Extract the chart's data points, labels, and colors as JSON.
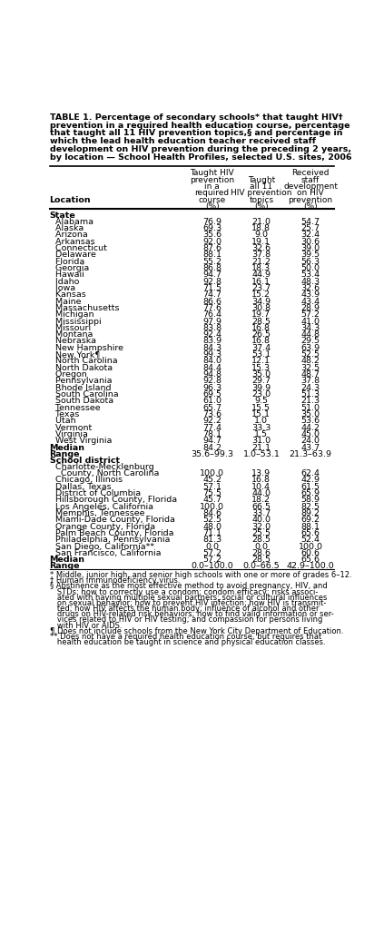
{
  "title_line1": "TABLE 1. Percentage of secondary schools* that taught HIV†",
  "title_line2": "prevention in a required health education course, percentage",
  "title_line3": "that taught all 11 HIV prevention topics,§ and percentage in",
  "title_line4": "which the lead health education teacher received staff",
  "title_line5": "development on HIV prevention during the preceding 2 years,",
  "title_line6": "by location — School Health Profiles, selected U.S. sites, 2006",
  "state_rows": [
    [
      "Alabama",
      "76.9",
      "21.0",
      "54.7"
    ],
    [
      "Alaska",
      "69.3",
      "18.8",
      "25.7"
    ],
    [
      "Arizona",
      "35.6",
      "9.0",
      "32.4"
    ],
    [
      "Arkansas",
      "92.0",
      "19.1",
      "30.6"
    ],
    [
      "Connecticut",
      "87.6",
      "32.6",
      "39.0"
    ],
    [
      "Delaware",
      "88.1",
      "37.8",
      "39.5"
    ],
    [
      "Florida",
      "55.2",
      "21.2",
      "56.3"
    ],
    [
      "Georgia",
      "86.8",
      "18.3",
      "50.0"
    ],
    [
      "Hawaii",
      "94.7",
      "44.9",
      "53.4"
    ],
    [
      "Idaho",
      "92.8",
      "16.1",
      "48.3"
    ],
    [
      "Iowa",
      "71.5",
      "23.7",
      "32.6"
    ],
    [
      "Kansas",
      "74.7",
      "15.2",
      "43.9"
    ],
    [
      "Maine",
      "86.6",
      "34.9",
      "43.4"
    ],
    [
      "Massachusetts",
      "77.6",
      "30.8",
      "28.9"
    ],
    [
      "Michigan",
      "76.4",
      "19.7",
      "57.2"
    ],
    [
      "Mississippi",
      "97.9",
      "28.5",
      "41.0"
    ],
    [
      "Missouri",
      "83.8",
      "16.8",
      "34.3"
    ],
    [
      "Montana",
      "92.4",
      "26.5",
      "44.8"
    ],
    [
      "Nebraska",
      "83.9",
      "16.8",
      "29.5"
    ],
    [
      "New Hampshire",
      "84.3",
      "37.4",
      "63.9"
    ],
    [
      "New York¶",
      "99.3",
      "53.1",
      "52.5"
    ],
    [
      "North Carolina",
      "84.0",
      "12.1",
      "48.2"
    ],
    [
      "North Dakota",
      "84.4",
      "15.3",
      "32.5"
    ],
    [
      "Oregon",
      "94.8",
      "35.0",
      "48.7"
    ],
    [
      "Pennsylvania",
      "92.8",
      "29.7",
      "37.8"
    ],
    [
      "Rhode Island",
      "96.3",
      "39.9",
      "24.3"
    ],
    [
      "South Carolina",
      "69.5",
      "23.0",
      "51.3"
    ],
    [
      "South Dakota",
      "61.0",
      "9.5",
      "21.3"
    ],
    [
      "Tennessee",
      "65.7",
      "15.5",
      "51.0"
    ],
    [
      "Texas",
      "73.6",
      "15.1",
      "35.0"
    ],
    [
      "Utah",
      "92.2",
      "1.0",
      "53.6"
    ],
    [
      "Vermont",
      "77.4",
      "33.3",
      "44.2"
    ],
    [
      "Virginia",
      "78.1",
      "1.5",
      "45.0"
    ],
    [
      "West Virginia",
      "94.7",
      "31.0",
      "24.0"
    ]
  ],
  "state_median": [
    "84.2",
    "21.1",
    "43.7"
  ],
  "state_range": [
    "35.6–99.3",
    "1.0–53.1",
    "21.3–63.9"
  ],
  "district_rows": [
    [
      "Charlotte-Mecklenburg",
      "County, North Carolina",
      "100.0",
      "13.9",
      "62.4"
    ],
    [
      "Chicago, Illinois",
      "",
      "45.2",
      "16.8",
      "42.9"
    ],
    [
      "Dallas, Texas",
      "",
      "57.1",
      "10.4",
      "61.5"
    ],
    [
      "District of Columbia",
      "",
      "75.5",
      "44.0",
      "65.9"
    ],
    [
      "Hillsborough County, Florida",
      "",
      "45.7",
      "18.2",
      "58.9"
    ],
    [
      "Los Angeles, California",
      "",
      "100.0",
      "66.5",
      "82.5"
    ],
    [
      "Memphis, Tennessee",
      "",
      "84.6",
      "33.7",
      "89.2"
    ],
    [
      "Miami-Dade County, Florida",
      "",
      "52.5",
      "40.0",
      "69.2"
    ],
    [
      "Orange County, Florida",
      "",
      "48.0",
      "32.0",
      "88.1"
    ],
    [
      "Palm Beach County, Florida",
      "",
      "71.1",
      "25.5",
      "65.6"
    ],
    [
      "Philadelphia, Pennsylvania",
      "",
      "81.3",
      "28.5",
      "52.4"
    ],
    [
      "San Diego, California**",
      "",
      "0.0",
      "0.0",
      "100.0"
    ],
    [
      "San Francisco, California",
      "",
      "57.2",
      "28.6",
      "60.6"
    ]
  ],
  "district_median": [
    "57.2",
    "28.5",
    "65.6"
  ],
  "district_range": [
    "0.0–100.0",
    "0.0–66.5",
    "42.9–100.0"
  ],
  "footnote1": "* Middle, junior high, and senior high schools with one or more of grades 6–12.",
  "footnote2": "† Human immunodeficiency virus.",
  "footnote3a": "§ Abstinence as the most effective method to avoid pregnancy, HIV, and",
  "footnote3b": "   STDs; how to correctly use a condom; condom efficacy; risks associ-",
  "footnote3c": "   ated with having multiple sexual partners; social or cultural influences",
  "footnote3d": "   on sexual behavior; how to prevent HIV infection; how HIV is transmit-",
  "footnote3e": "   ted; how HIV affects the human body; influence of alcohol and other",
  "footnote3f": "   drugs on HIV-related risk behaviors; how to find valid information or ser-",
  "footnote3g": "   vices related to HIV or HIV testing; and compassion for persons living",
  "footnote3h": "   with HIV or AIDS.",
  "footnote4": "¶ Does not include schools from the New York City Department of Education.",
  "footnote5a": "** Does not have a required health education course, but requires that",
  "footnote5b": "   health education be taught in science and physical education classes."
}
